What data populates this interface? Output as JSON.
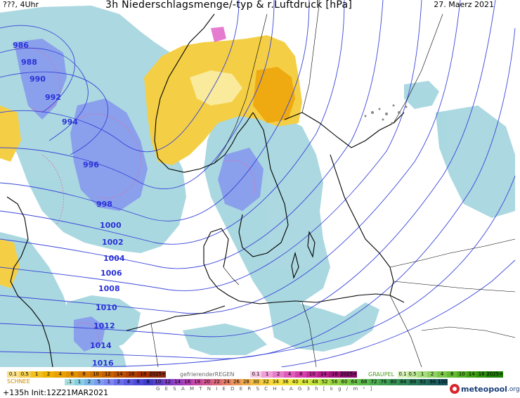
{
  "header": {
    "left": "???, 4Uhr",
    "title": "3h Niederschlagsmenge/-typ & r.Luftdruck [hPa]",
    "date": "27. Maerz 2021"
  },
  "isobars": [
    "986",
    "988",
    "990",
    "992",
    "994",
    "996",
    "998",
    "1000",
    "1002",
    "1004",
    "1006",
    "1008",
    "1010",
    "1012",
    "1014",
    "1016"
  ],
  "legend": {
    "schnee": {
      "title": "SCHNEE",
      "ticks": [
        "0.1",
        "0.5",
        "1",
        "2",
        "4",
        "6",
        "8",
        "10",
        "12",
        "14",
        "16",
        "18",
        "2025+"
      ],
      "colors": [
        "#f9e08a",
        "#f5cf4e",
        "#f1bf20",
        "#eeb000",
        "#e8a000",
        "#e39000",
        "#d98000",
        "#cf7000",
        "#c56000",
        "#bb5000",
        "#b14000",
        "#a73000",
        "#8a2a10"
      ]
    },
    "regen": {
      "title": "gefrierenderREGEN",
      "ticks": [
        "0.1",
        "1",
        "2",
        "4",
        "8",
        "10",
        "14",
        "16",
        "2025+"
      ],
      "colors": [
        "#f7c8e6",
        "#ef9fd6",
        "#e77cc8",
        "#df5cba",
        "#d43fab",
        "#c62b9c",
        "#b41f8c",
        "#a0157b",
        "#85106a"
      ]
    },
    "graupel": {
      "title": "GRAUPEL",
      "ticks": [
        "0.1",
        "0.5",
        "1",
        "2",
        "4",
        "8",
        "10",
        "14",
        "16",
        "2025+"
      ],
      "colors": [
        "#d6f2b8",
        "#bfe89a",
        "#a6dd7c",
        "#8fd160",
        "#79c648",
        "#64ba34",
        "#51ad24",
        "#3f9f16",
        "#2f910c",
        "#207f06"
      ]
    },
    "gesamt": {
      "title": "G E S A M T N I E D E R S C H L A G   3 h   [ k g / m ² ]",
      "ticks": [
        ".1",
        "1",
        "2",
        "5",
        "1",
        "2",
        "4",
        "6",
        "8",
        "10",
        "12",
        "14",
        "16",
        "18",
        "20",
        "22",
        "24",
        "26",
        "28",
        "30",
        "32",
        "34",
        "36",
        "40",
        "44",
        "48",
        "52",
        "56",
        "60",
        "64",
        "68",
        "72",
        "76",
        "80",
        "84",
        "88",
        "92",
        "96",
        "100"
      ],
      "colors": [
        "#a8dede",
        "#86cfe3",
        "#7bb6e8",
        "#7a9cf0",
        "#7d85f2",
        "#6a6ee8",
        "#5b5be0",
        "#4c4ad6",
        "#3f3cc8",
        "#5f3ec6",
        "#7b3ec2",
        "#983ebd",
        "#b23db4",
        "#c84aa3",
        "#d35a90",
        "#dc6c7b",
        "#e38066",
        "#e99657",
        "#eeab4b",
        "#f2bf43",
        "#f4cf3e",
        "#f6dd3b",
        "#f3e33a",
        "#e8e73a",
        "#d6e63b",
        "#c2e23d",
        "#acdc40",
        "#95d543",
        "#80cc46",
        "#6cc249",
        "#5bb84c",
        "#4cac4f",
        "#40a052",
        "#369354",
        "#2e8656",
        "#277958",
        "#216c59",
        "#1c5f5a",
        "#18525a"
      ]
    }
  },
  "footer": {
    "left": "+135h  Init:12Z21MAR2021",
    "logo_text": "meteopool",
    "logo_tld": ".org"
  }
}
